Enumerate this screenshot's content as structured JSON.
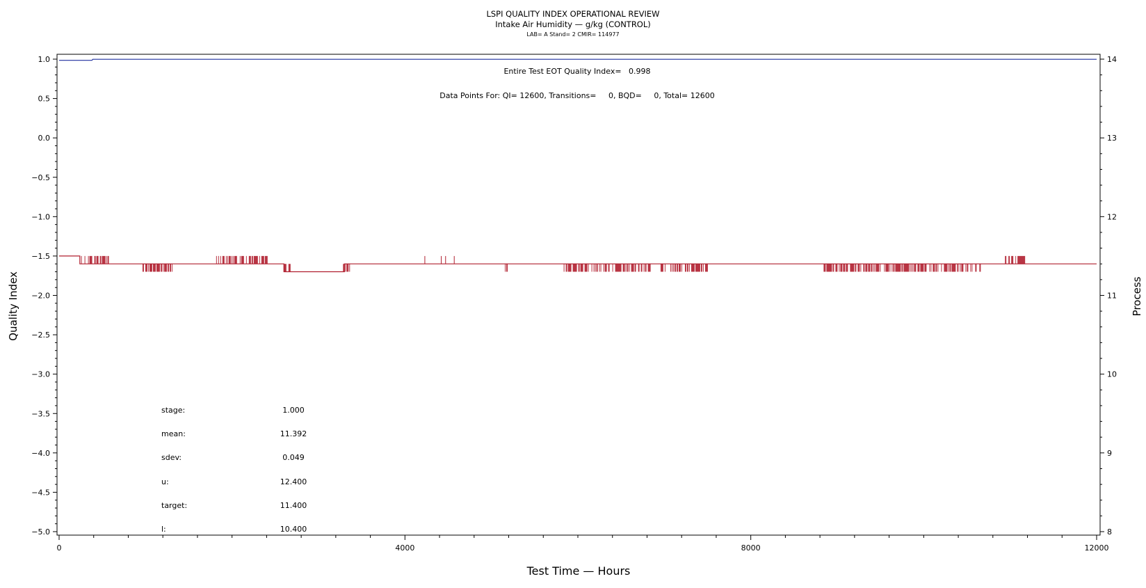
{
  "chart_data": {
    "type": "line",
    "title": "LSPI QUALITY INDEX OPERATIONAL REVIEW",
    "subtitle": "Intake Air Humidity — g/kg (CONTROL)",
    "subtitle2": "LAB= A Stand= 2 CMIR= 114977",
    "xlabel": "Test Time — Hours",
    "ylabel": "Quality Index",
    "y2label": "Process",
    "xlim": [
      0,
      12000
    ],
    "ylim": [
      -5.0,
      1.0
    ],
    "y2lim": [
      8,
      14
    ],
    "x_ticks": [
      0,
      4000,
      8000,
      12000
    ],
    "x_tick_labels": [
      "0",
      "4000",
      "8000",
      "12000"
    ],
    "y_ticks": [
      1.0,
      0.5,
      0.0,
      -0.5,
      -1.0,
      -1.5,
      -2.0,
      -2.5,
      -3.0,
      -3.5,
      -4.0,
      -4.5,
      -5.0
    ],
    "y_tick_labels": [
      "1.0",
      "0.5",
      "0.0",
      "−0.5",
      "−1.0",
      "−1.5",
      "−2.0",
      "−2.5",
      "−3.0",
      "−3.5",
      "−4.0",
      "−4.5",
      "−5.0"
    ],
    "y2_ticks": [
      14,
      13,
      12,
      11,
      10,
      9,
      8
    ],
    "y2_tick_labels": [
      "14",
      "13",
      "12",
      "11",
      "10",
      "9",
      "8"
    ],
    "annotations": [
      "Entire Test EOT Quality Index=   0.998",
      "Data Points For: QI= 12600, Transitions=     0, BQD=     0, Total= 12600"
    ],
    "stats": [
      {
        "label": "stage:",
        "value": "1.000"
      },
      {
        "label": "mean:",
        "value": "11.392"
      },
      {
        "label": "sdev:",
        "value": "0.049"
      },
      {
        "label": "u:",
        "value": "12.400"
      },
      {
        "label": "target:",
        "value": "11.400"
      },
      {
        "label": "l:",
        "value": "10.400"
      }
    ],
    "colors": {
      "quality_index": "#1f2f9e",
      "process": "#b01e2e"
    },
    "series": [
      {
        "axis": "left",
        "x": [
          0,
          380,
          390,
          12000
        ],
        "y": [
          0.985,
          0.985,
          0.998,
          0.998
        ]
      },
      {
        "axis": "right",
        "baseline": [
          {
            "x0": 0,
            "x1": 240,
            "y": 11.5
          },
          {
            "x0": 240,
            "x1": 2600,
            "y": 11.4
          },
          {
            "x0": 2600,
            "x1": 3300,
            "y": 11.3
          },
          {
            "x0": 3300,
            "x1": 12000,
            "y": 11.4
          }
        ],
        "noise_blocks": [
          {
            "x0": 250,
            "x1": 580,
            "y_from": 11.5,
            "y_to": 11.4
          },
          {
            "x0": 960,
            "x1": 1310,
            "y_from": 11.4,
            "y_to": 11.3
          },
          {
            "x0": 1820,
            "x1": 2410,
            "y_from": 11.4,
            "y_to": 11.5
          },
          {
            "x0": 2600,
            "x1": 2680,
            "y_from": 11.4,
            "y_to": 11.3
          },
          {
            "x0": 3280,
            "x1": 3370,
            "y_from": 11.4,
            "y_to": 11.3
          },
          {
            "x0": 5160,
            "x1": 5200,
            "y_from": 11.4,
            "y_to": 11.3
          },
          {
            "x0": 5840,
            "x1": 6850,
            "y_from": 11.4,
            "y_to": 11.3
          },
          {
            "x0": 6960,
            "x1": 7510,
            "y_from": 11.4,
            "y_to": 11.3
          },
          {
            "x0": 8830,
            "x1": 10660,
            "y_from": 11.4,
            "y_to": 11.3
          },
          {
            "x0": 10920,
            "x1": 11170,
            "y_from": 11.4,
            "y_to": 11.5
          }
        ],
        "spikes": [
          {
            "x": 4230,
            "y": 11.5
          },
          {
            "x": 4420,
            "y": 11.5
          },
          {
            "x": 4470,
            "y": 11.5
          },
          {
            "x": 4570,
            "y": 11.5
          }
        ]
      }
    ]
  }
}
